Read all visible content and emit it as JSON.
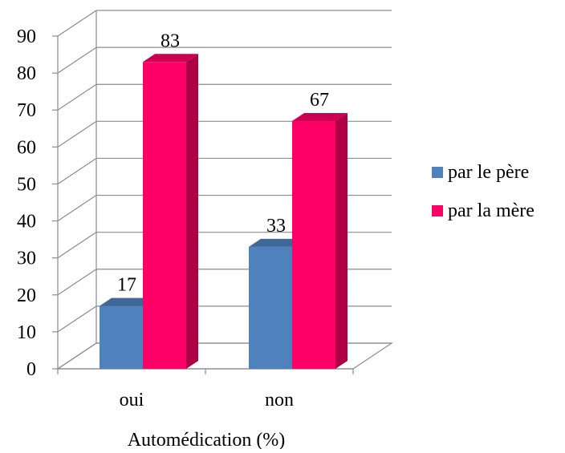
{
  "chart_data": {
    "type": "bar",
    "style": "3d-clustered-column",
    "categories": [
      "oui",
      "non"
    ],
    "series": [
      {
        "name": "par le père",
        "values": [
          17,
          33
        ],
        "color": "#4f81bd"
      },
      {
        "name": "par la mère",
        "values": [
          83,
          67
        ],
        "color": "#ff0066"
      }
    ],
    "data_labels": [
      [
        "17",
        "33"
      ],
      [
        "83",
        "67"
      ]
    ],
    "xlabel": "Automédication (%)",
    "ylabel": "",
    "ylim": [
      0,
      90
    ],
    "yticks": [
      "0",
      "10",
      "20",
      "30",
      "40",
      "50",
      "60",
      "70",
      "80",
      "90"
    ],
    "grid": true,
    "legend_position": "right"
  }
}
